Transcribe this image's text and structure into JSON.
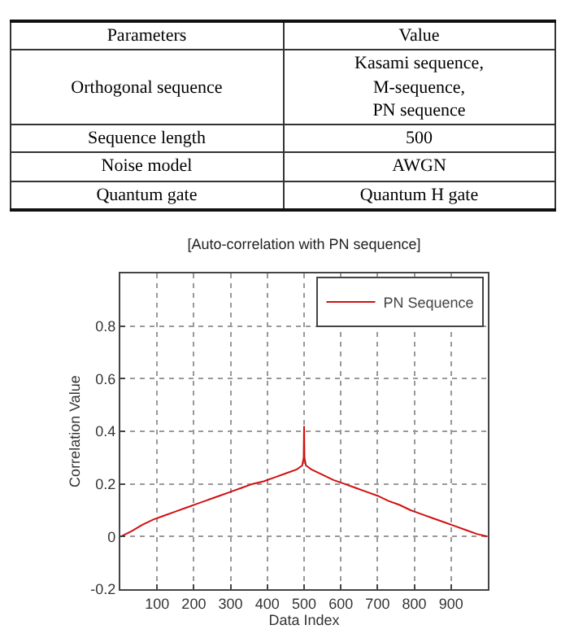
{
  "chart_data": [
    {
      "type": "other",
      "annotations": [
        "Parameters",
        "Value",
        "Orthogonal sequence",
        "Kasami sequence,\nM-sequence,\nPN sequence",
        "Sequence length",
        "500",
        "Noise model",
        "AWGN",
        "Quantum gate",
        "Quantum H gate"
      ]
    },
    {
      "type": "line",
      "title": "[Auto-correlation with PN sequence]",
      "xlabel": "Data Index",
      "ylabel": "Correlation Value",
      "x": [
        1,
        30,
        60,
        90,
        120,
        150,
        180,
        210,
        240,
        270,
        300,
        330,
        360,
        390,
        420,
        450,
        480,
        495,
        499,
        500,
        501,
        505,
        520,
        550,
        580,
        610,
        640,
        670,
        700,
        730,
        760,
        790,
        820,
        850,
        880,
        910,
        940,
        970,
        999
      ],
      "series": [
        {
          "name": "PN Sequence",
          "color": "#d01010",
          "values": [
            0,
            0.02,
            0.045,
            0.065,
            0.08,
            0.095,
            0.11,
            0.125,
            0.14,
            0.155,
            0.17,
            0.185,
            0.2,
            0.21,
            0.225,
            0.24,
            0.255,
            0.27,
            0.3,
            0.42,
            0.3,
            0.27,
            0.255,
            0.235,
            0.215,
            0.2,
            0.185,
            0.17,
            0.155,
            0.135,
            0.12,
            0.1,
            0.085,
            0.07,
            0.055,
            0.04,
            0.025,
            0.01,
            0
          ]
        }
      ],
      "xlim": [
        0,
        1000
      ],
      "xticks": [
        100,
        200,
        300,
        400,
        500,
        600,
        700,
        800,
        900
      ],
      "ylim": [
        -0.2,
        1
      ],
      "yticks": [
        -0.2,
        0,
        0.2,
        0.4,
        0.6,
        0.8
      ],
      "grid": true,
      "legend": "top right",
      "marker": "none",
      "line_style": "solid"
    }
  ]
}
